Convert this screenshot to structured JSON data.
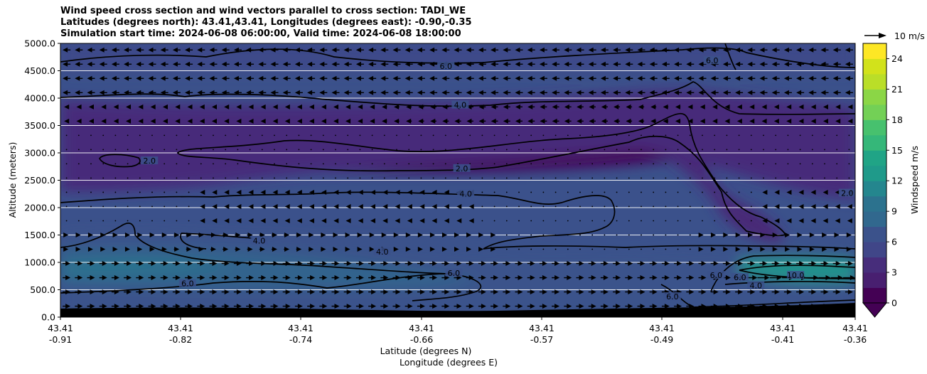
{
  "chart_data": {
    "type": "contourf-quiver",
    "title_lines": [
      "Wind speed cross section and wind vectors parallel to cross section: TADI_WE",
      "Latitudes (degrees north): 43.41,43.41, Longitudes (degrees east): -0.90,-0.35",
      "Simulation start time: 2024-06-08 06:00:00, Valid time: 2024-06-08 18:00:00"
    ],
    "ylabel": "Altitude (meters)",
    "xlabel_1": "Latitude (degrees N)",
    "xlabel_2": "Longitude (degrees E)",
    "ylim": [
      0,
      5000
    ],
    "y_ticks": [
      0,
      500,
      1000,
      1500,
      2000,
      2500,
      3000,
      3500,
      4000,
      4500,
      5000
    ],
    "y_tick_labels": [
      "0.0",
      "500.0",
      "1000.0",
      "1500.0",
      "2000.0",
      "2500.0",
      "3000.0",
      "3500.0",
      "4000.0",
      "4500.0",
      "5000.0"
    ],
    "x_ticks": [
      {
        "lat": "43.41",
        "lon": "-0.91"
      },
      {
        "lat": "43.41",
        "lon": "-0.82"
      },
      {
        "lat": "43.41",
        "lon": "-0.74"
      },
      {
        "lat": "43.41",
        "lon": "-0.66"
      },
      {
        "lat": "43.41",
        "lon": "-0.57"
      },
      {
        "lat": "43.41",
        "lon": "-0.49"
      },
      {
        "lat": "43.41",
        "lon": "-0.41"
      },
      {
        "lat": "43.41",
        "lon": "-0.36"
      }
    ],
    "colorbar": {
      "label": "Windspeed m/s",
      "min": 0,
      "max": 25.5,
      "ticks": [
        0,
        3,
        6,
        9,
        12,
        15,
        18,
        21,
        24
      ],
      "tick_labels": [
        "0",
        "3",
        "6",
        "9",
        "12",
        "15",
        "18",
        "21",
        "24"
      ],
      "step": 1.5,
      "extend": "min"
    },
    "quiver_key": {
      "label": "10 m/s",
      "value": 10
    },
    "contour_labels": [
      {
        "text": "6.0",
        "x": 0.485,
        "y": 4560
      },
      {
        "text": "4.0",
        "x": 0.503,
        "y": 3850
      },
      {
        "text": "2.0",
        "x": 0.505,
        "y": 2690
      },
      {
        "text": "4.0",
        "x": 0.51,
        "y": 2230
      },
      {
        "text": "2.0",
        "x": 0.112,
        "y": 2830
      },
      {
        "text": "4.0",
        "x": 0.25,
        "y": 1370
      },
      {
        "text": "4.0",
        "x": 0.405,
        "y": 1170
      },
      {
        "text": "6.0",
        "x": 0.495,
        "y": 780
      },
      {
        "text": "6.0",
        "x": 0.16,
        "y": 590
      },
      {
        "text": "6.0",
        "x": 0.82,
        "y": 4660
      },
      {
        "text": "6.0",
        "x": 0.825,
        "y": 740
      },
      {
        "text": "6.0",
        "x": 0.855,
        "y": 700
      },
      {
        "text": "4.0",
        "x": 0.875,
        "y": 550
      },
      {
        "text": "10.0",
        "x": 0.925,
        "y": 740
      },
      {
        "text": "6.0",
        "x": 0.77,
        "y": 350
      },
      {
        "text": "2.0",
        "x": 0.99,
        "y": 2240
      }
    ],
    "speed_field_summary": [
      {
        "layer_m": [
          4000,
          5000
        ],
        "speed_ms": [
          5,
          7
        ],
        "direction": "easterly"
      },
      {
        "layer_m": [
          2300,
          3400
        ],
        "speed_ms": [
          0.5,
          2.5
        ],
        "direction": "weak/variable"
      },
      {
        "layer_m": [
          200,
          1500
        ],
        "speed_ms": [
          4,
          9
        ],
        "direction": "westerly"
      },
      {
        "layer_m": [
          500,
          900
        ],
        "speed_ms": [
          9,
          11
        ],
        "direction": "westerly (east end jet)"
      }
    ]
  }
}
